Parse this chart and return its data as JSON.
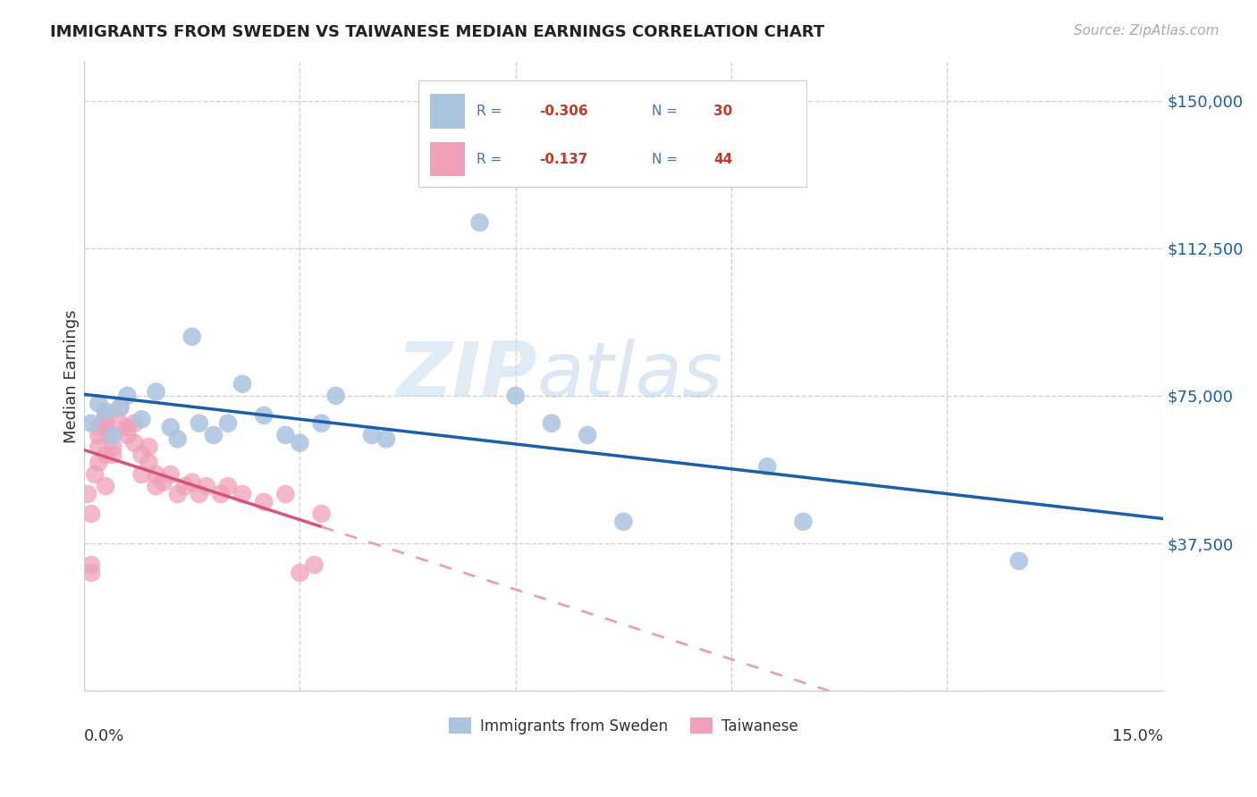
{
  "title": "IMMIGRANTS FROM SWEDEN VS TAIWANESE MEDIAN EARNINGS CORRELATION CHART",
  "source": "Source: ZipAtlas.com",
  "ylabel": "Median Earnings",
  "y_ticks": [
    0,
    37500,
    75000,
    112500,
    150000
  ],
  "y_tick_labels": [
    "",
    "$37,500",
    "$75,000",
    "$112,500",
    "$150,000"
  ],
  "xlim": [
    0.0,
    0.15
  ],
  "ylim": [
    0,
    160000
  ],
  "legend_blue_r": "-0.306",
  "legend_blue_n": "30",
  "legend_pink_r": "-0.137",
  "legend_pink_n": "44",
  "blue_scatter_x": [
    0.001,
    0.002,
    0.003,
    0.004,
    0.005,
    0.006,
    0.008,
    0.01,
    0.012,
    0.013,
    0.015,
    0.016,
    0.018,
    0.02,
    0.022,
    0.025,
    0.028,
    0.03,
    0.033,
    0.035,
    0.04,
    0.042,
    0.055,
    0.06,
    0.065,
    0.07,
    0.075,
    0.095,
    0.1,
    0.13
  ],
  "blue_scatter_y": [
    68000,
    73000,
    71000,
    65000,
    72000,
    75000,
    69000,
    76000,
    67000,
    64000,
    90000,
    68000,
    65000,
    68000,
    78000,
    70000,
    65000,
    63000,
    68000,
    75000,
    65000,
    64000,
    119000,
    75000,
    68000,
    65000,
    43000,
    57000,
    43000,
    33000
  ],
  "pink_scatter_x": [
    0.0005,
    0.001,
    0.001,
    0.001,
    0.0015,
    0.002,
    0.002,
    0.002,
    0.002,
    0.0025,
    0.003,
    0.003,
    0.003,
    0.003,
    0.0035,
    0.004,
    0.004,
    0.005,
    0.005,
    0.006,
    0.006,
    0.007,
    0.007,
    0.008,
    0.008,
    0.009,
    0.009,
    0.01,
    0.01,
    0.011,
    0.012,
    0.013,
    0.014,
    0.015,
    0.016,
    0.017,
    0.019,
    0.02,
    0.022,
    0.025,
    0.028,
    0.03,
    0.032,
    0.033
  ],
  "pink_scatter_y": [
    50000,
    30000,
    32000,
    45000,
    55000,
    58000,
    62000,
    65000,
    67000,
    68000,
    68000,
    52000,
    60000,
    70000,
    65000,
    60000,
    62000,
    68000,
    72000,
    65000,
    67000,
    63000,
    68000,
    55000,
    60000,
    58000,
    62000,
    52000,
    55000,
    53000,
    55000,
    50000,
    52000,
    53000,
    50000,
    52000,
    50000,
    52000,
    50000,
    48000,
    50000,
    30000,
    32000,
    45000
  ],
  "blue_color": "#aac4e0",
  "pink_color": "#f0a0b8",
  "blue_line_color": "#1a5fa8",
  "pink_line_color": "#d4547a",
  "pink_line_dashed_color": "#e8a0b8",
  "watermark_zip": "ZIP",
  "watermark_atlas": "atlas",
  "background_color": "#ffffff",
  "grid_color": "#cccccc",
  "label_color_blue": "#4472c4",
  "label_color_red": "#c0392b"
}
